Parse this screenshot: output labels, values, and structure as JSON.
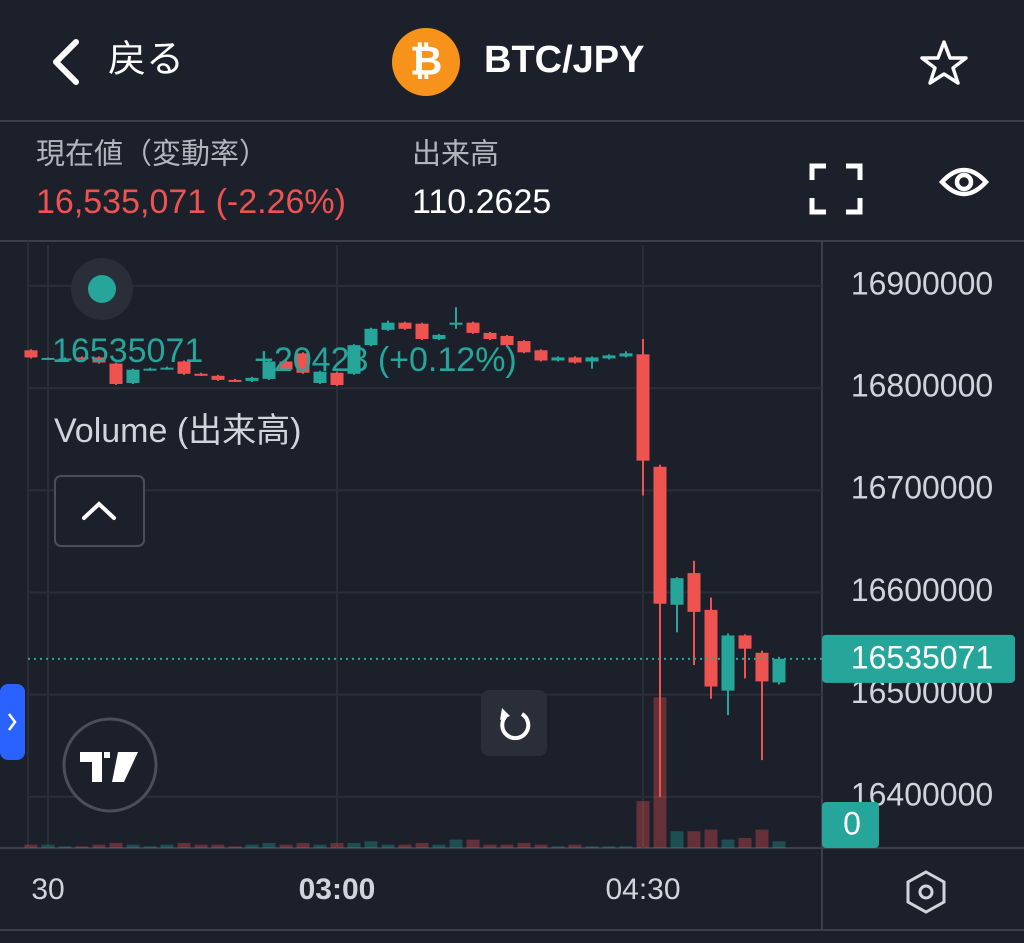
{
  "header": {
    "back": "戻る",
    "pair": "BTC/JPY"
  },
  "stats": {
    "price_label": "現在値（変動率）",
    "price": "16,535,071 (-2.26%)",
    "volume_label": "出来高",
    "volume": "110.2625"
  },
  "chart_data": {
    "type": "candlestick",
    "last_price": 16535071,
    "legend_change": "+20423 (+0.12%)",
    "volume_title": "Volume (出来高)",
    "up_color": "#26a69a",
    "down_color": "#ef5350",
    "open": [
      16837000,
      16829000,
      16829000,
      16830000,
      16830000,
      16824000,
      16805000,
      16818000,
      16819000,
      16826000,
      16814000,
      16812000,
      16808000,
      16807000,
      16809000,
      16826000,
      16834000,
      16805000,
      16815000,
      16814000,
      16842000,
      16857000,
      16864000,
      16863000,
      16848000,
      16862000,
      16864000,
      16854000,
      16851000,
      16846000,
      16837000,
      16827000,
      16830000,
      16826000,
      16829000,
      16831000,
      16833000,
      16723000,
      16588000,
      16619000,
      16583000,
      16504000,
      16558000,
      16541000,
      16512000
    ],
    "high": [
      16838000,
      16830000,
      16830000,
      16831000,
      16831000,
      16825000,
      16819000,
      16820000,
      16821000,
      16827000,
      16815000,
      16813000,
      16809000,
      16811000,
      16827000,
      16827000,
      16835000,
      16817000,
      16816000,
      16843000,
      16859000,
      16866000,
      16865000,
      16864000,
      16853000,
      16879000,
      16865000,
      16855000,
      16852000,
      16847000,
      16838000,
      16831000,
      16831000,
      16831000,
      16833000,
      16836000,
      16848000,
      16725000,
      16615000,
      16631000,
      16595000,
      16560000,
      16559000,
      16543000,
      16537000
    ],
    "low": [
      16829000,
      16828000,
      16828000,
      16828000,
      16824000,
      16803000,
      16804000,
      16817000,
      16818000,
      16813000,
      16812000,
      16807000,
      16806000,
      16806000,
      16808000,
      16817000,
      16814000,
      16804000,
      16802000,
      16813000,
      16841000,
      16856000,
      16857000,
      16847000,
      16847000,
      16858000,
      16853000,
      16847000,
      16841000,
      16834000,
      16826000,
      16826000,
      16824000,
      16819000,
      16828000,
      16830000,
      16695000,
      16400000,
      16561000,
      16529000,
      16496000,
      16480000,
      16516000,
      16436000,
      16510000
    ],
    "close": [
      16830000,
      16829500,
      16829000,
      16829000,
      16825000,
      16804000,
      16818000,
      16819000,
      16820000,
      16814000,
      16813000,
      16808000,
      16807000,
      16810000,
      16826000,
      16818000,
      16815000,
      16816000,
      16803000,
      16842000,
      16858000,
      16864000,
      16858000,
      16848000,
      16852000,
      16864000,
      16854000,
      16848000,
      16842000,
      16835000,
      16827000,
      16830000,
      16825000,
      16830000,
      16832000,
      16834000,
      16729000,
      16589000,
      16614000,
      16581000,
      16508000,
      16558000,
      16545000,
      16513000,
      16535071
    ],
    "volume": [
      0.2,
      0.2,
      0.1,
      0.1,
      0.2,
      0.3,
      0.2,
      0.1,
      0.2,
      0.3,
      0.2,
      0.2,
      0.1,
      0.2,
      0.3,
      0.2,
      0.3,
      0.2,
      0.3,
      0.3,
      0.4,
      0.2,
      0.2,
      0.3,
      0.2,
      0.5,
      0.5,
      0.2,
      0.2,
      0.3,
      0.2,
      0.1,
      0.2,
      0.1,
      0.1,
      0.1,
      2.8,
      9,
      1.0,
      1.0,
      1.1,
      0.5,
      0.6,
      1.1,
      0.4
    ],
    "volume_ylim": [
      0,
      36
    ],
    "volume_yticks": [
      0
    ],
    "xticks": [
      {
        "value": 1,
        "label": "30"
      },
      {
        "value": 18,
        "label": "03:00"
      },
      {
        "value": 36,
        "label": "04:30"
      }
    ],
    "ylim": [
      16350000,
      16940000
    ],
    "yticks": [
      16400000,
      16500000,
      16600000,
      16700000,
      16800000,
      16900000
    ]
  }
}
